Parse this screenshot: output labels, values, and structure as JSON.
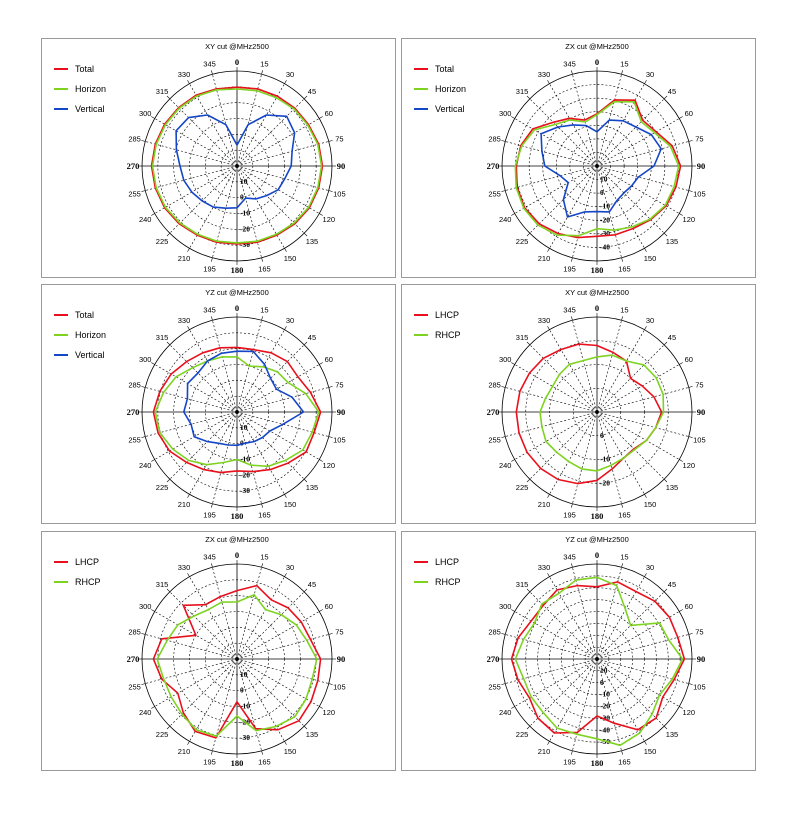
{
  "colors": {
    "red": "#e8101c",
    "green": "#7ed321",
    "blue": "#1446c8",
    "grid": "#000000"
  },
  "chart_data": [
    {
      "type": "polar",
      "title": "XY cut @MHz2500",
      "theta_labels": [
        "0",
        "15",
        "30",
        "45",
        "60",
        "75",
        "90",
        "105",
        "120",
        "135",
        "150",
        "165",
        "180",
        "195",
        "210",
        "225",
        "240",
        "255",
        "270",
        "285",
        "300",
        "315",
        "330",
        "345"
      ],
      "r_labels": [
        "-30",
        "-20",
        "-10",
        "0",
        "10"
      ],
      "series": [
        {
          "name": "Total",
          "color": "red",
          "values": [
            0.83,
            0.84,
            0.85,
            0.86,
            0.87,
            0.89,
            0.9,
            0.89,
            0.88,
            0.86,
            0.84,
            0.83,
            0.82,
            0.83,
            0.84,
            0.86,
            0.88,
            0.89,
            0.9,
            0.89,
            0.88,
            0.87,
            0.86,
            0.84
          ]
        },
        {
          "name": "Horizon",
          "color": "green",
          "values": [
            0.81,
            0.82,
            0.83,
            0.85,
            0.86,
            0.88,
            0.89,
            0.88,
            0.87,
            0.85,
            0.83,
            0.82,
            0.81,
            0.82,
            0.83,
            0.85,
            0.87,
            0.88,
            0.89,
            0.88,
            0.87,
            0.86,
            0.85,
            0.83
          ]
        },
        {
          "name": "Vertical",
          "color": "blue",
          "values": [
            0.22,
            0.45,
            0.62,
            0.74,
            0.7,
            0.6,
            0.57,
            0.52,
            0.5,
            0.44,
            0.4,
            0.35,
            0.44,
            0.46,
            0.5,
            0.52,
            0.55,
            0.58,
            0.6,
            0.66,
            0.74,
            0.72,
            0.62,
            0.45
          ]
        }
      ]
    },
    {
      "type": "polar",
      "title": "ZX cut @MHz2500",
      "theta_labels": [
        "0",
        "15",
        "30",
        "45",
        "60",
        "75",
        "90",
        "105",
        "120",
        "135",
        "150",
        "165",
        "180",
        "195",
        "210",
        "225",
        "240",
        "255",
        "270",
        "285",
        "300",
        "315",
        "330",
        "345"
      ],
      "r_labels": [
        "-40",
        "-30",
        "-20",
        "-10",
        "0",
        "10"
      ],
      "series": [
        {
          "name": "Total",
          "color": "red",
          "values": [
            0.55,
            0.72,
            0.8,
            0.68,
            0.72,
            0.82,
            0.88,
            0.86,
            0.84,
            0.8,
            0.76,
            0.75,
            0.74,
            0.78,
            0.82,
            0.86,
            0.88,
            0.87,
            0.85,
            0.83,
            0.78,
            0.65,
            0.58,
            0.5
          ]
        },
        {
          "name": "Horizon",
          "color": "green",
          "values": [
            0.54,
            0.7,
            0.78,
            0.66,
            0.7,
            0.8,
            0.86,
            0.84,
            0.83,
            0.79,
            0.74,
            0.7,
            0.66,
            0.76,
            0.84,
            0.88,
            0.89,
            0.88,
            0.86,
            0.82,
            0.76,
            0.62,
            0.56,
            0.48
          ]
        },
        {
          "name": "Vertical",
          "color": "blue",
          "values": [
            0.36,
            0.5,
            0.55,
            0.58,
            0.66,
            0.7,
            0.6,
            0.45,
            0.42,
            0.4,
            0.42,
            0.5,
            0.48,
            0.5,
            0.62,
            0.5,
            0.35,
            0.4,
            0.55,
            0.6,
            0.68,
            0.58,
            0.5,
            0.44
          ]
        }
      ]
    },
    {
      "type": "polar",
      "title": "YZ cut @MHz2500",
      "theta_labels": [
        "0",
        "15",
        "30",
        "45",
        "60",
        "75",
        "90",
        "105",
        "120",
        "135",
        "150",
        "165",
        "180",
        "195",
        "210",
        "225",
        "240",
        "255",
        "270",
        "285",
        "300",
        "315",
        "330",
        "345"
      ],
      "r_labels": [
        "-30",
        "-20",
        "-10",
        "0",
        "10"
      ],
      "series": [
        {
          "name": "Total",
          "color": "red",
          "values": [
            0.68,
            0.68,
            0.72,
            0.75,
            0.74,
            0.8,
            0.88,
            0.84,
            0.84,
            0.76,
            0.7,
            0.65,
            0.62,
            0.66,
            0.7,
            0.75,
            0.82,
            0.86,
            0.88,
            0.84,
            0.8,
            0.75,
            0.72,
            0.7
          ]
        },
        {
          "name": "Horizon",
          "color": "green",
          "values": [
            0.58,
            0.5,
            0.55,
            0.6,
            0.62,
            0.75,
            0.86,
            0.82,
            0.8,
            0.72,
            0.66,
            0.58,
            0.5,
            0.55,
            0.64,
            0.72,
            0.78,
            0.84,
            0.86,
            0.8,
            0.74,
            0.66,
            0.62,
            0.6
          ]
        },
        {
          "name": "Vertical",
          "color": "blue",
          "values": [
            0.64,
            0.66,
            0.58,
            0.5,
            0.48,
            0.6,
            0.7,
            0.5,
            0.4,
            0.38,
            0.36,
            0.34,
            0.35,
            0.36,
            0.38,
            0.44,
            0.52,
            0.5,
            0.56,
            0.54,
            0.6,
            0.58,
            0.62,
            0.64
          ]
        }
      ]
    },
    {
      "type": "polar",
      "title": "XY cut @MHz2500",
      "theta_labels": [
        "0",
        "15",
        "30",
        "45",
        "60",
        "75",
        "90",
        "105",
        "120",
        "135",
        "150",
        "165",
        "180",
        "195",
        "210",
        "225",
        "240",
        "255",
        "270",
        "285",
        "300",
        "315",
        "330",
        "345"
      ],
      "r_labels": [
        "-20",
        "-10",
        "0"
      ],
      "series": [
        {
          "name": "LHCP",
          "color": "red",
          "values": [
            0.7,
            0.65,
            0.62,
            0.5,
            0.55,
            0.62,
            0.68,
            0.64,
            0.6,
            0.55,
            0.56,
            0.62,
            0.72,
            0.78,
            0.82,
            0.84,
            0.85,
            0.85,
            0.85,
            0.84,
            0.82,
            0.8,
            0.76,
            0.74
          ]
        },
        {
          "name": "RHCP",
          "color": "green",
          "values": [
            0.58,
            0.62,
            0.62,
            0.7,
            0.72,
            0.72,
            0.7,
            0.64,
            0.6,
            0.56,
            0.56,
            0.58,
            0.62,
            0.62,
            0.6,
            0.6,
            0.62,
            0.6,
            0.6,
            0.56,
            0.54,
            0.56,
            0.58,
            0.56
          ]
        }
      ]
    },
    {
      "type": "polar",
      "title": "ZX cut @MHz2500",
      "theta_labels": [
        "0",
        "15",
        "30",
        "45",
        "60",
        "75",
        "90",
        "105",
        "120",
        "135",
        "150",
        "165",
        "180",
        "195",
        "210",
        "225",
        "240",
        "255",
        "270",
        "285",
        "300",
        "315",
        "330",
        "345"
      ],
      "r_labels": [
        "-30",
        "-20",
        "-10",
        "0",
        "10"
      ],
      "series": [
        {
          "name": "LHCP",
          "color": "red",
          "values": [
            0.72,
            0.8,
            0.72,
            0.76,
            0.78,
            0.8,
            0.88,
            0.88,
            0.9,
            0.92,
            0.86,
            0.76,
            0.45,
            0.86,
            0.88,
            0.8,
            0.72,
            0.82,
            0.88,
            0.82,
            0.5,
            0.8,
            0.66,
            0.68
          ]
        },
        {
          "name": "RHCP",
          "color": "green",
          "values": [
            0.6,
            0.7,
            0.6,
            0.66,
            0.72,
            0.76,
            0.84,
            0.82,
            0.84,
            0.86,
            0.82,
            0.78,
            0.6,
            0.84,
            0.86,
            0.82,
            0.8,
            0.8,
            0.84,
            0.76,
            0.72,
            0.64,
            0.6,
            0.62
          ]
        }
      ]
    },
    {
      "type": "polar",
      "title": "YZ cut @MHz2500",
      "theta_labels": [
        "0",
        "15",
        "30",
        "45",
        "60",
        "75",
        "90",
        "105",
        "120",
        "135",
        "150",
        "165",
        "180",
        "195",
        "210",
        "225",
        "240",
        "255",
        "270",
        "285",
        "300",
        "315",
        "330",
        "345"
      ],
      "r_labels": [
        "-50",
        "-40",
        "-30",
        "-20",
        "-10",
        "0",
        "10"
      ],
      "series": [
        {
          "name": "LHCP",
          "color": "red",
          "values": [
            0.76,
            0.84,
            0.82,
            0.86,
            0.88,
            0.88,
            0.92,
            0.84,
            0.8,
            0.88,
            0.86,
            0.7,
            0.6,
            0.8,
            0.9,
            0.88,
            0.82,
            0.86,
            0.9,
            0.86,
            0.8,
            0.8,
            0.84,
            0.8
          ]
        },
        {
          "name": "RHCP",
          "color": "green",
          "values": [
            0.86,
            0.8,
            0.6,
            0.5,
            0.76,
            0.78,
            0.9,
            0.82,
            0.76,
            0.82,
            0.9,
            0.94,
            0.84,
            0.82,
            0.84,
            0.8,
            0.8,
            0.8,
            0.86,
            0.8,
            0.76,
            0.82,
            0.8,
            0.86
          ]
        }
      ]
    }
  ]
}
